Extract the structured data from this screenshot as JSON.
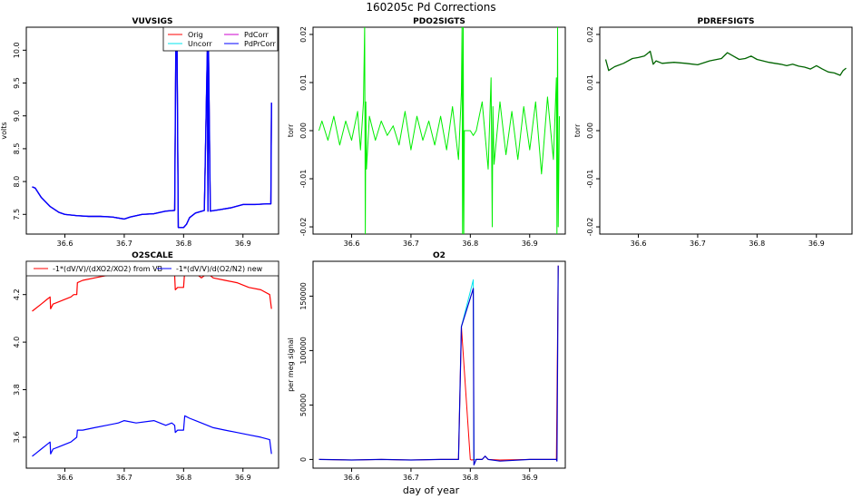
{
  "figure": {
    "title": "160205c   Pd Corrections",
    "xlabel": "day of year"
  },
  "chart_data": [
    {
      "id": "vuvsigs",
      "type": "line",
      "title": "VUVSIGS",
      "xlabel": "",
      "ylabel": "volts",
      "xlim": [
        36.535,
        36.96
      ],
      "ylim": [
        7.2,
        10.35
      ],
      "xticks": [
        36.6,
        36.7,
        36.8,
        36.9
      ],
      "yticks": [
        7.5,
        8.0,
        8.5,
        9.0,
        9.5,
        10.0
      ],
      "xtick_labels": [
        "36.6",
        "36.7",
        "36.8",
        "36.9"
      ],
      "ytick_labels": [
        "7.5",
        "8.0",
        "8.5",
        "9.0",
        "9.5",
        "10.0"
      ],
      "legend": {
        "position": "top-right",
        "columns": 2
      },
      "series": [
        {
          "name": "Orig",
          "color": "#ff0000",
          "width": 1.2,
          "x": [
            36.545,
            36.55,
            36.56,
            36.575,
            36.59,
            36.6,
            36.62,
            36.64,
            36.66,
            36.68,
            36.7,
            36.71,
            36.73,
            36.75,
            36.77,
            36.785,
            36.787,
            36.789,
            36.791,
            36.8,
            36.805,
            36.81,
            36.82,
            36.835,
            36.84,
            36.841,
            36.842,
            36.845,
            36.86,
            36.88,
            36.9,
            36.92,
            36.94,
            36.947,
            36.948
          ],
          "y": [
            7.92,
            7.9,
            7.76,
            7.62,
            7.53,
            7.5,
            7.48,
            7.47,
            7.47,
            7.46,
            7.43,
            7.46,
            7.5,
            7.51,
            7.55,
            7.56,
            10.1,
            10.1,
            7.3,
            7.3,
            7.35,
            7.45,
            7.52,
            7.56,
            10.0,
            7.55,
            10.0,
            7.55,
            7.57,
            7.6,
            7.65,
            7.65,
            7.66,
            7.66,
            9.2
          ]
        },
        {
          "name": "Uncorr",
          "color": "#00e5ee",
          "width": 1.2,
          "x": [
            36.545,
            36.55,
            36.56,
            36.575,
            36.59,
            36.6,
            36.62,
            36.64,
            36.66,
            36.68,
            36.7,
            36.71,
            36.73,
            36.75,
            36.77,
            36.785,
            36.787,
            36.789,
            36.791,
            36.8,
            36.805,
            36.81,
            36.82,
            36.835,
            36.84,
            36.841,
            36.842,
            36.845,
            36.86,
            36.88,
            36.9,
            36.92,
            36.94,
            36.947,
            36.948
          ],
          "y": [
            7.92,
            7.9,
            7.76,
            7.62,
            7.53,
            7.5,
            7.48,
            7.47,
            7.47,
            7.46,
            7.43,
            7.46,
            7.5,
            7.51,
            7.55,
            7.56,
            10.1,
            10.1,
            7.3,
            7.3,
            7.35,
            7.45,
            7.52,
            7.56,
            10.0,
            7.55,
            10.0,
            7.55,
            7.57,
            7.6,
            7.65,
            7.65,
            7.66,
            7.66,
            9.2
          ]
        },
        {
          "name": "PdCorr",
          "color": "#cc00cc",
          "width": 1.2,
          "x": [
            36.545,
            36.55,
            36.56,
            36.575,
            36.59,
            36.6,
            36.62,
            36.64,
            36.66,
            36.68,
            36.7,
            36.71,
            36.73,
            36.75,
            36.77,
            36.785,
            36.787,
            36.789,
            36.791,
            36.8,
            36.805,
            36.81,
            36.82,
            36.835,
            36.84,
            36.841,
            36.842,
            36.845,
            36.86,
            36.88,
            36.9,
            36.92,
            36.94,
            36.947,
            36.948
          ],
          "y": [
            7.92,
            7.9,
            7.76,
            7.62,
            7.53,
            7.5,
            7.48,
            7.47,
            7.47,
            7.46,
            7.43,
            7.46,
            7.5,
            7.51,
            7.55,
            7.56,
            10.1,
            10.1,
            7.3,
            7.3,
            7.35,
            7.45,
            7.52,
            7.56,
            10.0,
            7.55,
            10.0,
            7.55,
            7.57,
            7.6,
            7.65,
            7.65,
            7.66,
            7.66,
            9.2
          ]
        },
        {
          "name": "PdPrCorr",
          "color": "#0000ff",
          "width": 1.4,
          "x": [
            36.545,
            36.55,
            36.56,
            36.575,
            36.59,
            36.6,
            36.62,
            36.64,
            36.66,
            36.68,
            36.7,
            36.71,
            36.73,
            36.75,
            36.77,
            36.785,
            36.787,
            36.789,
            36.791,
            36.8,
            36.805,
            36.81,
            36.82,
            36.835,
            36.84,
            36.841,
            36.842,
            36.845,
            36.86,
            36.88,
            36.9,
            36.92,
            36.94,
            36.947,
            36.948
          ],
          "y": [
            7.92,
            7.9,
            7.76,
            7.62,
            7.53,
            7.5,
            7.48,
            7.47,
            7.47,
            7.46,
            7.43,
            7.46,
            7.5,
            7.51,
            7.55,
            7.56,
            10.1,
            10.1,
            7.3,
            7.3,
            7.35,
            7.45,
            7.52,
            7.56,
            10.0,
            7.55,
            10.0,
            7.55,
            7.57,
            7.6,
            7.65,
            7.65,
            7.66,
            7.66,
            9.2
          ]
        }
      ]
    },
    {
      "id": "pdo2sigts",
      "type": "line",
      "title": "PDO2SIGTS",
      "xlabel": "",
      "ylabel": "torr",
      "xlim": [
        36.535,
        36.96
      ],
      "ylim": [
        -0.0215,
        0.0215
      ],
      "xticks": [
        36.6,
        36.7,
        36.8,
        36.9
      ],
      "yticks": [
        -0.02,
        -0.01,
        0.0,
        0.01,
        0.02
      ],
      "xtick_labels": [
        "36.6",
        "36.7",
        "36.8",
        "36.9"
      ],
      "ytick_labels": [
        "-0.02",
        "-0.01",
        "0.00",
        "0.01",
        "0.02"
      ],
      "series": [
        {
          "name": "PDO2SIGTS",
          "color": "#00ee00",
          "width": 1,
          "x": [
            36.545,
            36.55,
            36.56,
            36.57,
            36.58,
            36.59,
            36.6,
            36.61,
            36.615,
            36.62,
            36.622,
            36.623,
            36.624,
            36.625,
            36.63,
            36.64,
            36.65,
            36.66,
            36.67,
            36.68,
            36.69,
            36.7,
            36.71,
            36.72,
            36.73,
            36.74,
            36.75,
            36.76,
            36.77,
            36.78,
            36.785,
            36.786,
            36.787,
            36.788,
            36.789,
            36.79,
            36.8,
            36.805,
            36.81,
            36.82,
            36.83,
            36.835,
            36.837,
            36.838,
            36.84,
            36.85,
            36.86,
            36.87,
            36.88,
            36.89,
            36.9,
            36.91,
            36.92,
            36.93,
            36.94,
            36.945,
            36.946,
            36.947,
            36.948,
            36.95
          ],
          "y": [
            0.0,
            0.002,
            -0.002,
            0.003,
            -0.003,
            0.002,
            -0.002,
            0.004,
            -0.004,
            0.006,
            0.022,
            -0.022,
            0.006,
            -0.008,
            0.003,
            -0.002,
            0.002,
            -0.001,
            0.001,
            -0.003,
            0.004,
            -0.004,
            0.003,
            -0.002,
            0.002,
            -0.003,
            0.003,
            -0.004,
            0.005,
            -0.006,
            0.008,
            0.022,
            -0.022,
            0.022,
            -0.022,
            0.0,
            0.0,
            -0.001,
            0.0,
            0.006,
            -0.008,
            0.011,
            -0.02,
            0.005,
            -0.007,
            0.006,
            -0.005,
            0.004,
            -0.006,
            0.005,
            -0.004,
            0.006,
            -0.009,
            0.007,
            -0.006,
            0.011,
            -0.022,
            0.022,
            -0.02,
            0.003
          ]
        }
      ]
    },
    {
      "id": "pdrefsigts",
      "type": "line",
      "title": "PDREFSIGTS",
      "xlabel": "",
      "ylabel": "torr",
      "xlim": [
        36.535,
        36.96
      ],
      "ylim": [
        -0.0215,
        0.0215
      ],
      "xticks": [
        36.6,
        36.7,
        36.8,
        36.9
      ],
      "yticks": [
        -0.02,
        -0.01,
        0.0,
        0.01,
        0.02
      ],
      "xtick_labels": [
        "36.6",
        "36.7",
        "36.8",
        "36.9"
      ],
      "ytick_labels": [
        "-0.02",
        "-0.01",
        "0.00",
        "0.01",
        "0.02"
      ],
      "series": [
        {
          "name": "PDREFSIGTS",
          "color": "#006400",
          "width": 1.3,
          "x": [
            36.545,
            36.55,
            36.56,
            36.575,
            36.59,
            36.6,
            36.61,
            36.615,
            36.62,
            36.625,
            36.63,
            36.64,
            36.66,
            36.68,
            36.7,
            36.72,
            36.74,
            36.75,
            36.76,
            36.77,
            36.78,
            36.79,
            36.8,
            36.81,
            36.82,
            36.83,
            36.84,
            36.85,
            36.86,
            36.87,
            36.88,
            36.89,
            36.9,
            36.91,
            36.92,
            36.93,
            36.94,
            36.945,
            36.95
          ],
          "y": [
            0.0148,
            0.0125,
            0.0133,
            0.014,
            0.015,
            0.0152,
            0.0155,
            0.016,
            0.0165,
            0.0138,
            0.0145,
            0.014,
            0.0142,
            0.014,
            0.0137,
            0.0145,
            0.015,
            0.0162,
            0.0155,
            0.0148,
            0.015,
            0.0155,
            0.0148,
            0.0145,
            0.0142,
            0.014,
            0.0138,
            0.0135,
            0.0138,
            0.0134,
            0.0132,
            0.0128,
            0.0135,
            0.0128,
            0.0122,
            0.012,
            0.0115,
            0.0125,
            0.013
          ]
        }
      ]
    },
    {
      "id": "o2scale",
      "type": "line",
      "title": "O2SCALE",
      "xlabel": "",
      "ylabel": "",
      "xlim": [
        36.535,
        36.96
      ],
      "ylim": [
        3.47,
        4.34
      ],
      "xticks": [
        36.6,
        36.7,
        36.8,
        36.9
      ],
      "yticks": [
        3.6,
        3.8,
        4.0,
        4.2
      ],
      "xtick_labels": [
        "36.6",
        "36.7",
        "36.8",
        "36.9"
      ],
      "ytick_labels": [
        "3.6",
        "3.8",
        "4.0",
        "4.2"
      ],
      "legend": {
        "position": "top",
        "columns": 2
      },
      "series": [
        {
          "name": "-1*(dV/V)/(dXO2/XO2) from VB",
          "color": "#ff0000",
          "width": 1.2,
          "x": [
            36.545,
            36.55,
            36.56,
            36.57,
            36.575,
            36.576,
            36.58,
            36.59,
            36.6,
            36.61,
            36.615,
            36.62,
            36.621,
            36.63,
            36.65,
            36.67,
            36.7,
            36.72,
            36.75,
            36.77,
            36.78,
            36.785,
            36.786,
            36.79,
            36.8,
            36.802,
            36.81,
            36.82,
            36.83,
            36.84,
            36.85,
            36.87,
            36.89,
            36.91,
            36.93,
            36.945,
            36.948
          ],
          "y": [
            4.13,
            4.14,
            4.16,
            4.18,
            4.19,
            4.14,
            4.16,
            4.17,
            4.18,
            4.19,
            4.2,
            4.2,
            4.25,
            4.26,
            4.27,
            4.28,
            4.3,
            4.29,
            4.3,
            4.29,
            4.3,
            4.28,
            4.22,
            4.23,
            4.23,
            4.3,
            4.29,
            4.29,
            4.27,
            4.29,
            4.27,
            4.26,
            4.25,
            4.23,
            4.22,
            4.2,
            4.14
          ]
        },
        {
          "name": "-1*(dV/V)/d(O2/N2) new",
          "color": "#0000ff",
          "width": 1.2,
          "x": [
            36.545,
            36.55,
            36.56,
            36.57,
            36.575,
            36.576,
            36.58,
            36.59,
            36.6,
            36.61,
            36.615,
            36.62,
            36.621,
            36.63,
            36.65,
            36.67,
            36.69,
            36.7,
            36.72,
            36.75,
            36.77,
            36.78,
            36.785,
            36.786,
            36.79,
            36.8,
            36.802,
            36.81,
            36.82,
            36.83,
            36.84,
            36.85,
            36.87,
            36.89,
            36.91,
            36.93,
            36.945,
            36.948
          ],
          "y": [
            3.52,
            3.53,
            3.55,
            3.57,
            3.58,
            3.53,
            3.55,
            3.56,
            3.57,
            3.58,
            3.59,
            3.6,
            3.63,
            3.63,
            3.64,
            3.65,
            3.66,
            3.67,
            3.66,
            3.67,
            3.65,
            3.66,
            3.65,
            3.62,
            3.63,
            3.63,
            3.69,
            3.68,
            3.67,
            3.66,
            3.65,
            3.64,
            3.63,
            3.62,
            3.61,
            3.6,
            3.59,
            3.53
          ]
        }
      ]
    },
    {
      "id": "o2",
      "type": "line",
      "title": "O2",
      "xlabel": "",
      "ylabel": "per meg signal",
      "xlim": [
        36.535,
        36.96
      ],
      "ylim": [
        -8000,
        182000
      ],
      "xticks": [
        36.6,
        36.7,
        36.8,
        36.9
      ],
      "yticks": [
        0,
        50000,
        100000,
        150000
      ],
      "xtick_labels": [
        "36.6",
        "36.7",
        "36.8",
        "36.9"
      ],
      "ytick_labels": [
        "0",
        "50000",
        "100000",
        "150000"
      ],
      "series": [
        {
          "name": "red",
          "color": "#ff0000",
          "width": 1,
          "x": [
            36.545,
            36.6,
            36.65,
            36.7,
            36.75,
            36.78,
            36.785,
            36.8,
            36.802,
            36.81,
            36.82,
            36.825,
            36.83,
            36.85,
            36.9,
            36.945,
            36.948
          ],
          "y": [
            0,
            -500,
            0,
            -500,
            0,
            0,
            122000,
            0,
            -500,
            0,
            0,
            3000,
            0,
            -500,
            0,
            0,
            178000
          ]
        },
        {
          "name": "cyan",
          "color": "#00e5ee",
          "width": 1,
          "x": [
            36.785,
            36.805,
            36.806,
            36.81
          ],
          "y": [
            122000,
            165000,
            0,
            0
          ]
        },
        {
          "name": "blue",
          "color": "#0000cc",
          "width": 1.2,
          "x": [
            36.545,
            36.6,
            36.65,
            36.7,
            36.75,
            36.78,
            36.785,
            36.805,
            36.806,
            36.81,
            36.82,
            36.825,
            36.83,
            36.85,
            36.9,
            36.945,
            36.946,
            36.948
          ],
          "y": [
            0,
            -500,
            0,
            -500,
            0,
            0,
            122000,
            157000,
            -5000,
            0,
            0,
            3000,
            0,
            -1500,
            0,
            0,
            -1500,
            178000
          ]
        }
      ]
    }
  ]
}
